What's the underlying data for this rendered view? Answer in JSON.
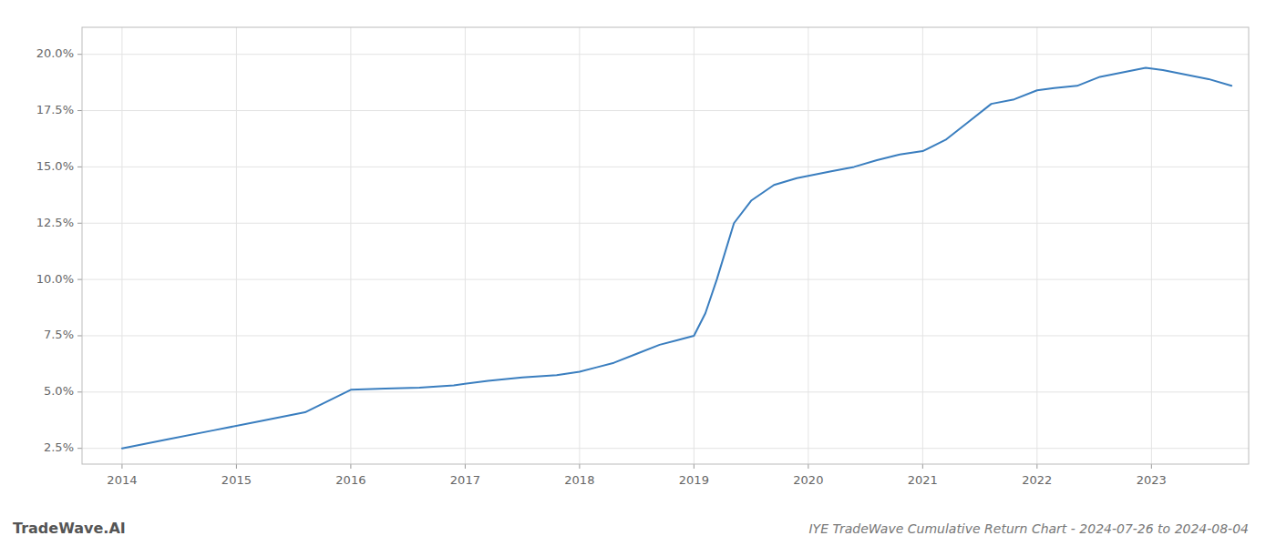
{
  "chart_data": {
    "type": "line",
    "title": "IYE TradeWave Cumulative Return Chart - 2024-07-26 to 2024-08-04",
    "annotations": [
      "TradeWave.AI"
    ],
    "color": "#3a7ebf",
    "grid": true,
    "x": [
      2014.0,
      2014.4,
      2014.8,
      2015.2,
      2015.6,
      2016.0,
      2016.3,
      2016.6,
      2016.9,
      2017.2,
      2017.5,
      2017.8,
      2018.0,
      2018.15,
      2018.3,
      2018.5,
      2018.7,
      2018.85,
      2019.0,
      2019.1,
      2019.2,
      2019.35,
      2019.5,
      2019.7,
      2019.9,
      2020.0,
      2020.2,
      2020.4,
      2020.6,
      2020.8,
      2021.0,
      2021.2,
      2021.4,
      2021.6,
      2021.8,
      2022.0,
      2022.15,
      2022.35,
      2022.55,
      2022.75,
      2022.95,
      2023.1,
      2023.3,
      2023.5,
      2023.7
    ],
    "values": [
      2.5,
      2.9,
      3.3,
      3.7,
      4.1,
      5.1,
      5.15,
      5.2,
      5.3,
      5.5,
      5.65,
      5.75,
      5.9,
      6.1,
      6.3,
      6.7,
      7.1,
      7.3,
      7.5,
      8.5,
      10.0,
      12.5,
      13.5,
      14.2,
      14.5,
      14.6,
      14.8,
      15.0,
      15.3,
      15.55,
      15.7,
      16.2,
      17.0,
      17.8,
      18.0,
      18.4,
      18.5,
      18.6,
      19.0,
      19.2,
      19.4,
      19.3,
      19.1,
      18.9,
      18.6
    ],
    "xlim": [
      2013.65,
      2023.85
    ],
    "ylim": [
      1.8,
      21.2
    ],
    "xticks": [
      2014,
      2015,
      2016,
      2017,
      2018,
      2019,
      2020,
      2021,
      2022,
      2023
    ],
    "yticks": [
      {
        "value": 2.5,
        "label": "2.5%"
      },
      {
        "value": 5.0,
        "label": "5.0%"
      },
      {
        "value": 7.5,
        "label": "7.5%"
      },
      {
        "value": 10.0,
        "label": "10.0%"
      },
      {
        "value": 12.5,
        "label": "12.5%"
      },
      {
        "value": 15.0,
        "label": "15.0%"
      },
      {
        "value": 17.5,
        "label": "17.5%"
      },
      {
        "value": 20.0,
        "label": "20.0%"
      }
    ]
  }
}
